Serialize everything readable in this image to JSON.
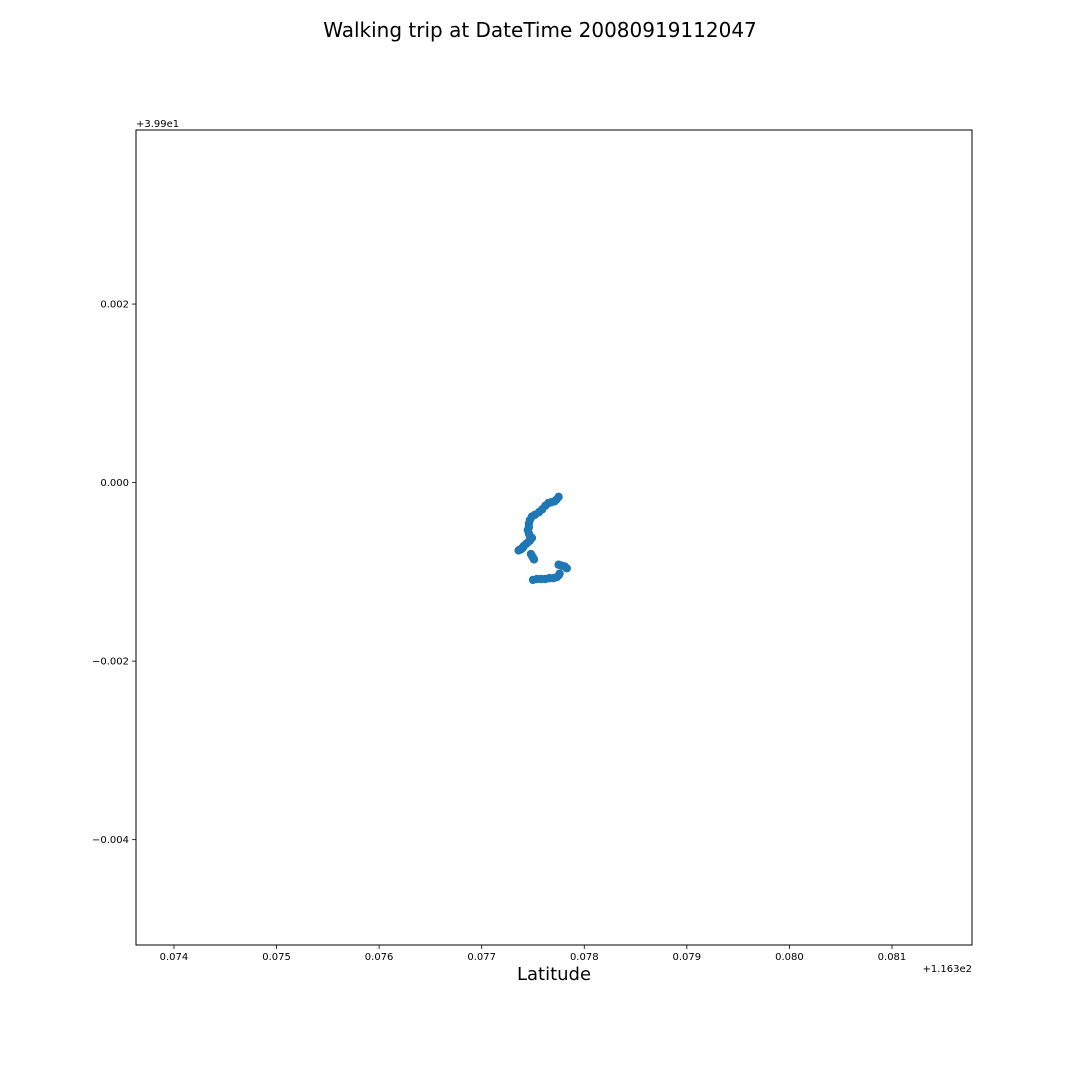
{
  "chart_data": {
    "type": "scatter",
    "title": "Walking trip at DateTime 20080919112047",
    "xlabel": "Latitude",
    "ylabel": "",
    "x_offset_label": "+1.163e2",
    "y_offset_label": "+3.99e1",
    "x_ticks": [
      "0.074",
      "0.075",
      "0.076",
      "0.077",
      "0.078",
      "0.079",
      "0.080",
      "0.081"
    ],
    "y_ticks": [
      "0.002",
      "0.000",
      "−0.002",
      "−0.004"
    ],
    "x_tick_values": [
      0.074,
      0.075,
      0.076,
      0.077,
      0.078,
      0.079,
      0.08,
      0.081
    ],
    "y_tick_values": [
      0.002,
      0.0,
      -0.002,
      -0.004
    ],
    "xlim": [
      0.07363,
      0.08178
    ],
    "ylim": [
      -0.00518,
      0.00395
    ],
    "grid": false,
    "legend": false,
    "color": "#1f77b4",
    "series": [
      {
        "x": [
          0.07775,
          0.07773,
          0.07771,
          0.07768,
          0.07765,
          0.07762,
          0.07759,
          0.07756,
          0.07752,
          0.07749,
          0.07747,
          0.07746,
          0.07746,
          0.07745,
          0.07746,
          0.07747,
          0.07748,
          0.07749,
          0.07747,
          0.07745,
          0.07743,
          0.07741,
          0.0774,
          0.07739,
          0.07738,
          0.07737,
          0.07736,
          0.07748,
          0.07749,
          0.0775,
          0.07751,
          0.07775,
          0.07778,
          0.07781,
          0.07783,
          0.07776,
          0.07775,
          0.07773,
          0.0777,
          0.07766,
          0.07762,
          0.07758,
          0.07754,
          0.0775
        ],
        "y": [
          -0.00016,
          -0.00019,
          -0.00021,
          -0.00022,
          -0.00023,
          -0.00026,
          -0.0003,
          -0.00033,
          -0.00036,
          -0.00038,
          -0.00042,
          -0.00046,
          -0.0005,
          -0.00053,
          -0.00057,
          -0.0006,
          -0.00061,
          -0.00062,
          -0.00065,
          -0.00067,
          -0.00069,
          -0.00071,
          -0.00073,
          -0.00074,
          -0.00075,
          -0.00075,
          -0.00076,
          -0.0008,
          -0.00082,
          -0.00084,
          -0.00086,
          -0.00092,
          -0.00093,
          -0.00094,
          -0.00096,
          -0.00102,
          -0.00104,
          -0.00106,
          -0.00107,
          -0.00107,
          -0.00108,
          -0.00108,
          -0.00108,
          -0.00109
        ]
      }
    ]
  }
}
